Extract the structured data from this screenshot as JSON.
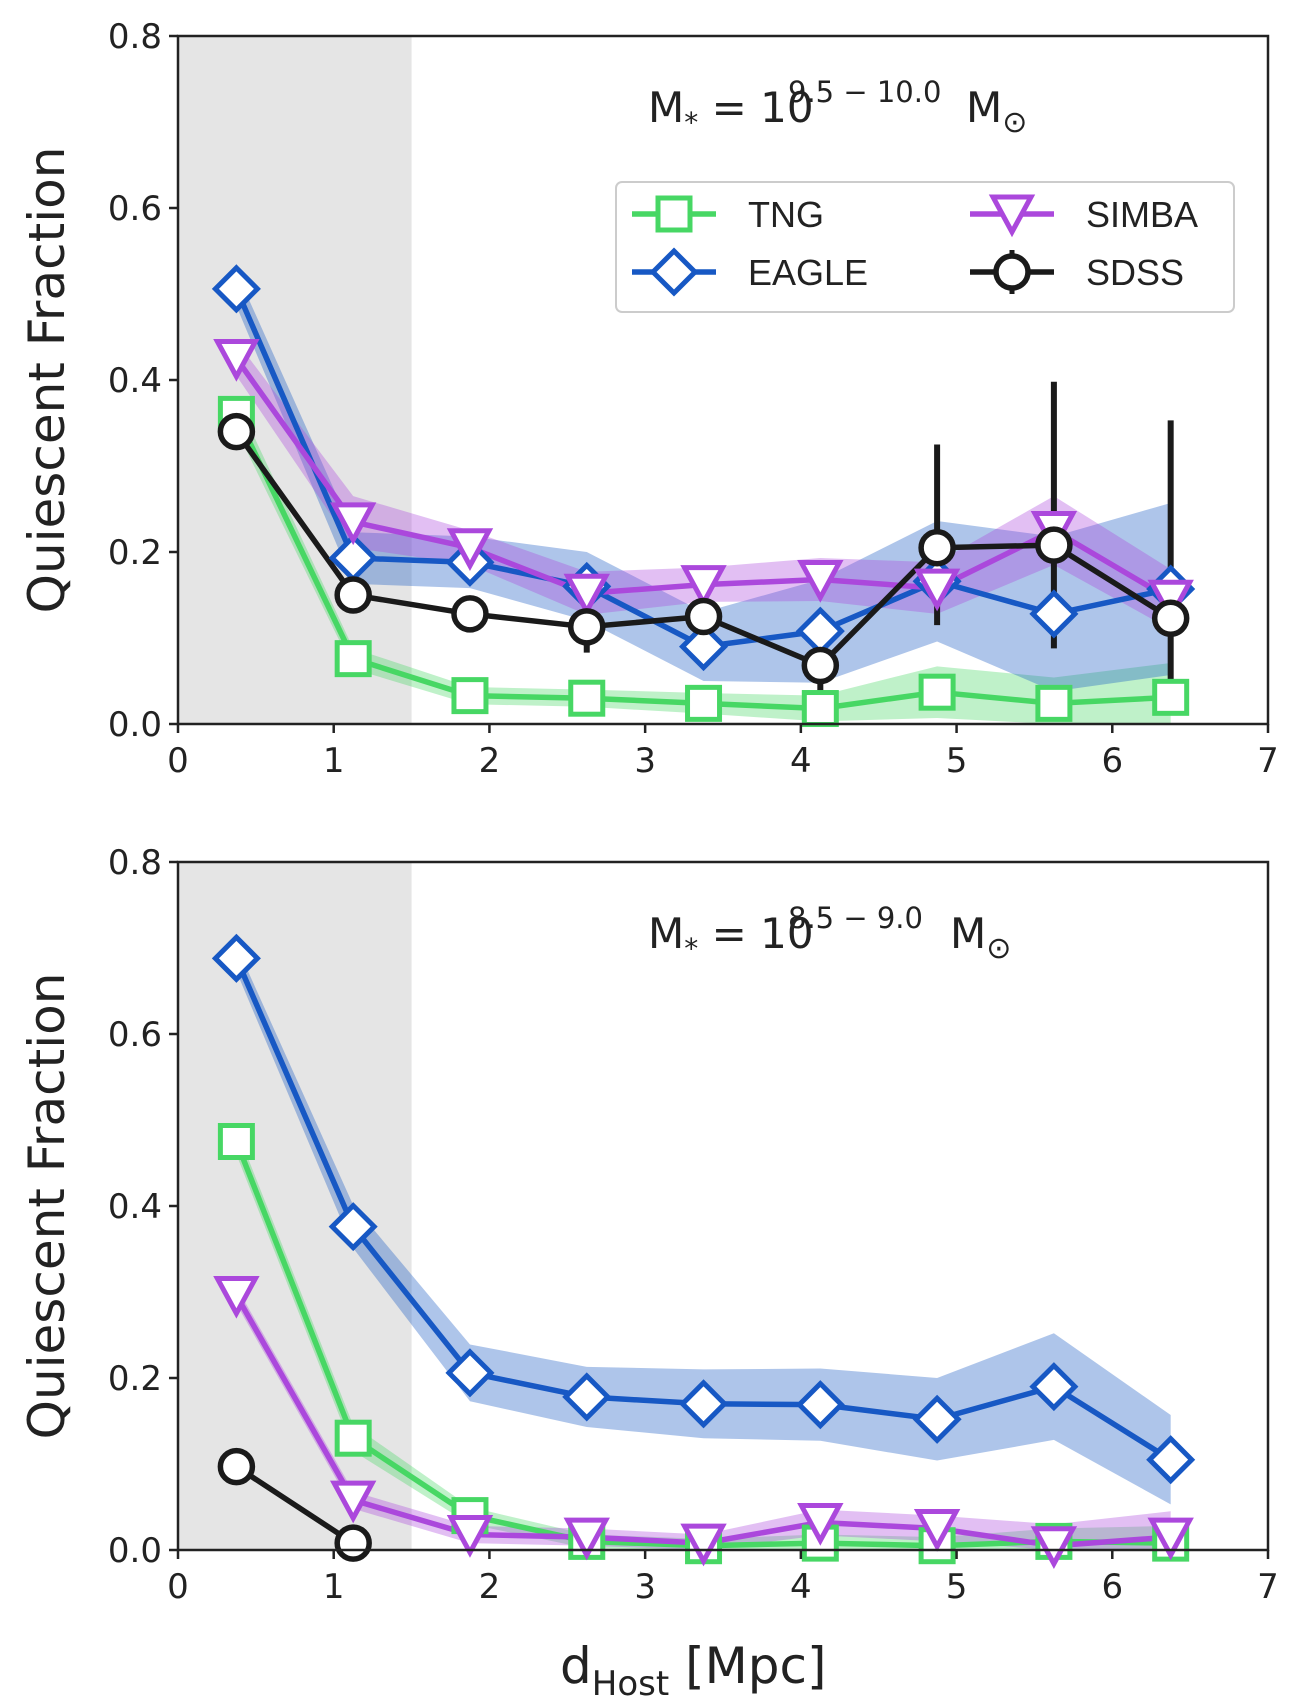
{
  "colors": {
    "TNG": "#47d764",
    "EAGLE": "#1758c4",
    "SIMBA": "#ab48dc",
    "SDSS": "#1a1a1a",
    "shade": "#e5e5e5"
  },
  "chart_data": {
    "type": "line",
    "xlabel": {
      "main": "d",
      "sub": "Host",
      "unit": " [Mpc]"
    },
    "ylabel": "Quiescent Fraction",
    "xlim": [
      0,
      7
    ],
    "ylim": [
      0,
      0.8
    ],
    "xticks": [
      "0",
      "1",
      "2",
      "3",
      "4",
      "5",
      "6",
      "7"
    ],
    "yticks": [
      "0.0",
      "0.2",
      "0.4",
      "0.6",
      "0.8"
    ],
    "shaded_region_x": [
      0,
      1.5
    ],
    "x": [
      0.375,
      1.125,
      1.875,
      2.625,
      3.375,
      4.125,
      4.875,
      5.625,
      6.375
    ],
    "legend": {
      "location": "upper-right",
      "entries": [
        "TNG",
        "EAGLE",
        "SIMBA",
        "SDSS"
      ]
    },
    "panels": [
      {
        "label": {
          "prefix": "M",
          "sub": "*",
          "mid": " = 10",
          "sup": "9.5 − 10.0",
          "unit": " M",
          "unit_sub": "⊙"
        },
        "series": [
          {
            "name": "TNG",
            "marker": "square",
            "values": [
              0.36,
              0.076,
              0.033,
              0.03,
              0.024,
              0.018,
              0.037,
              0.024,
              0.031
            ],
            "band": [
              0.018,
              0.012,
              0.01,
              0.01,
              0.012,
              0.015,
              0.03,
              0.03,
              0.04
            ]
          },
          {
            "name": "EAGLE",
            "marker": "diamond",
            "values": [
              0.506,
              0.193,
              0.188,
              0.16,
              0.09,
              0.108,
              0.166,
              0.128,
              0.157
            ],
            "band": [
              0.02,
              0.03,
              0.03,
              0.04,
              0.04,
              0.06,
              0.07,
              0.09,
              0.1
            ]
          },
          {
            "name": "SIMBA",
            "marker": "triangle",
            "values": [
              0.425,
              0.235,
              0.205,
              0.152,
              0.162,
              0.168,
              0.158,
              0.225,
              0.145
            ],
            "band": [
              0.02,
              0.03,
              0.02,
              0.025,
              0.02,
              0.025,
              0.03,
              0.04,
              0.035
            ]
          },
          {
            "name": "SDSS",
            "marker": "circle",
            "values": [
              0.34,
              0.15,
              0.128,
              0.113,
              0.125,
              0.068,
              0.205,
              0.208,
              0.123
            ],
            "err_low": [
              0,
              0,
              0,
              0.03,
              0,
              0.03,
              0.09,
              0.12,
              0.08
            ],
            "err_high": [
              0,
              0,
              0,
              0,
              0,
              0,
              0.12,
              0.19,
              0.23
            ]
          }
        ]
      },
      {
        "label": {
          "prefix": "M",
          "sub": "*",
          "mid": " = 10",
          "sup": "8.5 − 9.0",
          "unit": " M",
          "unit_sub": "⊙"
        },
        "series": [
          {
            "name": "TNG",
            "marker": "square",
            "values": [
              0.475,
              0.13,
              0.04,
              0.01,
              0.005,
              0.008,
              0.005,
              0.01,
              0.008
            ],
            "band": [
              0.015,
              0.015,
              0.01,
              0.008,
              0.008,
              0.01,
              0.01,
              0.015,
              0.02
            ]
          },
          {
            "name": "EAGLE",
            "marker": "diamond",
            "values": [
              0.688,
              0.376,
              0.206,
              0.178,
              0.17,
              0.169,
              0.152,
              0.19,
              0.105
            ],
            "band": [
              0.015,
              0.025,
              0.033,
              0.035,
              0.04,
              0.042,
              0.048,
              0.062,
              0.052
            ]
          },
          {
            "name": "SIMBA",
            "marker": "triangle",
            "values": [
              0.296,
              0.058,
              0.018,
              0.015,
              0.008,
              0.032,
              0.025,
              0.005,
              0.015
            ],
            "band": [
              0.01,
              0.01,
              0.01,
              0.01,
              0.01,
              0.015,
              0.015,
              0.025,
              0.03
            ]
          },
          {
            "name": "SDSS",
            "marker": "circle",
            "values": [
              0.097,
              0.008
            ]
          }
        ]
      }
    ]
  }
}
